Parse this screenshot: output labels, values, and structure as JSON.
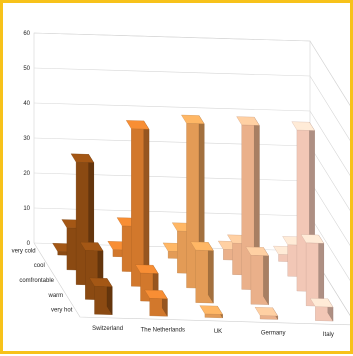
{
  "chart_data": {
    "type": "bar",
    "subtype": "3d-column",
    "categories": [
      "Switzerland",
      "The Netherlands",
      "UK",
      "Germany",
      "Italy"
    ],
    "depth_labels": [
      "very cold",
      "cool",
      "comfrontable",
      "warm",
      "very hot"
    ],
    "yticks": [
      0,
      10,
      20,
      30,
      40,
      50,
      60
    ],
    "ylim": [
      0,
      60
    ],
    "grid": true,
    "series": [
      {
        "name": "very cold",
        "values": [
          1,
          2,
          2,
          3,
          2
        ]
      },
      {
        "name": "cool",
        "values": [
          12,
          13,
          12,
          9,
          9
        ]
      },
      {
        "name": "comfrontable",
        "values": [
          35,
          45,
          47,
          47,
          46
        ]
      },
      {
        "name": "warm",
        "values": [
          14,
          8,
          15,
          14,
          18
        ]
      },
      {
        "name": "very hot",
        "values": [
          8,
          5,
          1,
          1,
          4
        ]
      }
    ],
    "colors": [
      "#8b4a12",
      "#d2782c",
      "#e39b56",
      "#eab08a",
      "#f2c7b6"
    ]
  }
}
